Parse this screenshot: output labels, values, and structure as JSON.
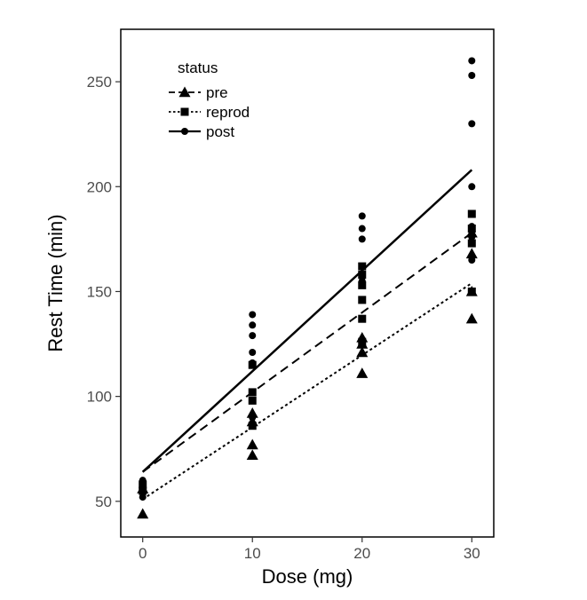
{
  "chart_data": {
    "type": "scatter",
    "title": "",
    "xlabel": "Dose (mg)",
    "ylabel": "Rest Time (min)",
    "xlim": [
      -2,
      32
    ],
    "ylim": [
      33,
      275
    ],
    "xticks": [
      0,
      10,
      20,
      30
    ],
    "yticks": [
      50,
      100,
      150,
      200,
      250
    ],
    "grid": false,
    "legend": {
      "title": "status",
      "position": "top-left"
    },
    "series": [
      {
        "name": "pre",
        "marker": "triangle",
        "line_style": "dashed",
        "fit": {
          "x": [
            0,
            30
          ],
          "y": [
            64,
            178
          ]
        },
        "points": [
          [
            0,
            44
          ],
          [
            0,
            56
          ],
          [
            10,
            72
          ],
          [
            10,
            77
          ],
          [
            10,
            88
          ],
          [
            10,
            92
          ],
          [
            20,
            111
          ],
          [
            20,
            121
          ],
          [
            20,
            125
          ],
          [
            20,
            128
          ],
          [
            30,
            137
          ],
          [
            30,
            150
          ],
          [
            30,
            168
          ],
          [
            30,
            178
          ]
        ]
      },
      {
        "name": "reprod",
        "marker": "square",
        "line_style": "dotted",
        "fit": {
          "x": [
            0,
            30
          ],
          "y": [
            51,
            154
          ]
        },
        "points": [
          [
            0,
            55
          ],
          [
            0,
            58
          ],
          [
            10,
            86
          ],
          [
            10,
            98
          ],
          [
            10,
            102
          ],
          [
            10,
            115
          ],
          [
            20,
            126
          ],
          [
            20,
            137
          ],
          [
            20,
            146
          ],
          [
            20,
            153
          ],
          [
            20,
            158
          ],
          [
            20,
            162
          ],
          [
            30,
            150
          ],
          [
            30,
            173
          ],
          [
            30,
            180
          ],
          [
            30,
            187
          ]
        ]
      },
      {
        "name": "post",
        "marker": "circle",
        "line_style": "solid",
        "fit": {
          "x": [
            0,
            30
          ],
          "y": [
            64,
            208
          ]
        },
        "points": [
          [
            0,
            52
          ],
          [
            0,
            54
          ],
          [
            0,
            57
          ],
          [
            0,
            59
          ],
          [
            0,
            60
          ],
          [
            10,
            90
          ],
          [
            10,
            116
          ],
          [
            10,
            121
          ],
          [
            10,
            129
          ],
          [
            10,
            134
          ],
          [
            10,
            139
          ],
          [
            20,
            155
          ],
          [
            20,
            157
          ],
          [
            20,
            175
          ],
          [
            20,
            180
          ],
          [
            20,
            186
          ],
          [
            30,
            165
          ],
          [
            30,
            176
          ],
          [
            30,
            181
          ],
          [
            30,
            200
          ],
          [
            30,
            230
          ],
          [
            30,
            253
          ],
          [
            30,
            260
          ]
        ]
      }
    ]
  }
}
